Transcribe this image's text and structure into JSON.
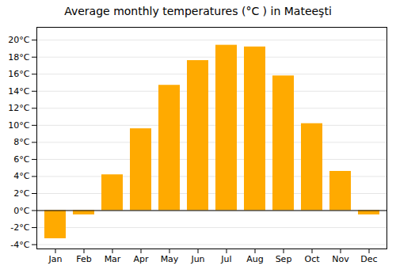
{
  "chart_data": {
    "type": "bar",
    "title": "Average monthly temperatures (°C ) in Mateeşti",
    "categories": [
      "Jan",
      "Feb",
      "Mar",
      "Apr",
      "May",
      "Jun",
      "Jul",
      "Aug",
      "Sep",
      "Oct",
      "Nov",
      "Dec"
    ],
    "values": [
      -3.3,
      -0.5,
      4.2,
      9.6,
      14.7,
      17.6,
      19.4,
      19.2,
      15.8,
      10.2,
      4.6,
      -0.5
    ],
    "color": "#FFAA00",
    "ylim": [
      -4.5,
      21.5
    ],
    "yticks": [
      {
        "value": -4,
        "label": "-4°C"
      },
      {
        "value": -2,
        "label": "-2°C"
      },
      {
        "value": 0,
        "label": "0°C"
      },
      {
        "value": 2,
        "label": "2°C"
      },
      {
        "value": 4,
        "label": "4°C"
      },
      {
        "value": 6,
        "label": "6°C"
      },
      {
        "value": 8,
        "label": "8°C"
      },
      {
        "value": 10,
        "label": "10°C"
      },
      {
        "value": 12,
        "label": "12°C"
      },
      {
        "value": 14,
        "label": "14°C"
      },
      {
        "value": 16,
        "label": "16°C"
      },
      {
        "value": 18,
        "label": "18°C"
      },
      {
        "value": 20,
        "label": "20°C"
      }
    ],
    "grid": true
  }
}
